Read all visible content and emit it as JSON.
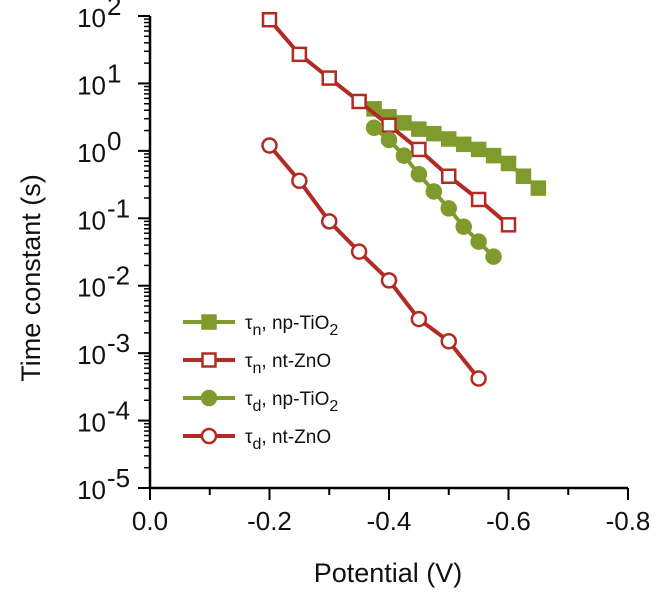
{
  "chart_data": {
    "type": "line",
    "xlabel": "Potential (V)",
    "ylabel": "Time constant (s)",
    "x_axis": {
      "range": [
        0.0,
        -0.8
      ],
      "ticks": [
        0.0,
        -0.2,
        -0.4,
        -0.6,
        -0.8
      ],
      "tick_labels": [
        "0.0",
        "-0.2",
        "-0.4",
        "-0.6",
        "-0.8"
      ],
      "minor_ticks": [
        -0.1,
        -0.3,
        -0.5,
        -0.7
      ]
    },
    "y_axis": {
      "scale": "log",
      "range": [
        1e-05,
        100
      ],
      "ticks": [
        {
          "value": 100,
          "base": "10",
          "exp": "2"
        },
        {
          "value": 10,
          "base": "10",
          "exp": "1"
        },
        {
          "value": 1,
          "base": "10",
          "exp": "0"
        },
        {
          "value": 0.1,
          "base": "10",
          "exp": "-1"
        },
        {
          "value": 0.01,
          "base": "10",
          "exp": "-2"
        },
        {
          "value": 0.001,
          "base": "10",
          "exp": "-3"
        },
        {
          "value": 0.0001,
          "base": "10",
          "exp": "-4"
        },
        {
          "value": 1e-05,
          "base": "10",
          "exp": "-5"
        }
      ]
    },
    "grid": false,
    "legend_position": "bottom-left",
    "series": [
      {
        "name": "τn, np-TiO2",
        "legend": {
          "symbol": "τ",
          "sub": "n",
          "text": ", np-TiO",
          "text_sub": "2"
        },
        "color": "#7f9a2d",
        "marker": "square",
        "filled": true,
        "x": [
          -0.375,
          -0.4,
          -0.425,
          -0.45,
          -0.475,
          -0.5,
          -0.525,
          -0.55,
          -0.575,
          -0.6,
          -0.625,
          -0.65
        ],
        "y": [
          4.2,
          3.2,
          2.6,
          2.1,
          1.8,
          1.5,
          1.25,
          1.05,
          0.85,
          0.65,
          0.42,
          0.28
        ]
      },
      {
        "name": "τn, nt-ZnO",
        "legend": {
          "symbol": "τ",
          "sub": "n",
          "text": ", nt-ZnO",
          "text_sub": ""
        },
        "color": "#b22a22",
        "marker": "square",
        "filled": false,
        "x": [
          -0.2,
          -0.25,
          -0.3,
          -0.35,
          -0.4,
          -0.45,
          -0.5,
          -0.55,
          -0.6
        ],
        "y": [
          88,
          27,
          12,
          5.4,
          2.4,
          1.05,
          0.42,
          0.19,
          0.08
        ]
      },
      {
        "name": "τd, np-TiO2",
        "legend": {
          "symbol": "τ",
          "sub": "d",
          "text": ", np-TiO",
          "text_sub": "2"
        },
        "color": "#7f9a2d",
        "marker": "circle",
        "filled": true,
        "x": [
          -0.375,
          -0.4,
          -0.425,
          -0.45,
          -0.475,
          -0.5,
          -0.525,
          -0.55,
          -0.575
        ],
        "y": [
          2.2,
          1.45,
          0.85,
          0.45,
          0.25,
          0.14,
          0.075,
          0.045,
          0.027
        ]
      },
      {
        "name": "τd, nt-ZnO",
        "legend": {
          "symbol": "τ",
          "sub": "d",
          "text": ", nt-ZnO",
          "text_sub": ""
        },
        "color": "#b22a22",
        "marker": "circle",
        "filled": false,
        "x": [
          -0.2,
          -0.25,
          -0.3,
          -0.35,
          -0.4,
          -0.45,
          -0.5,
          -0.55
        ],
        "y": [
          1.2,
          0.36,
          0.09,
          0.032,
          0.012,
          0.0032,
          0.0015,
          0.00042
        ]
      }
    ]
  }
}
